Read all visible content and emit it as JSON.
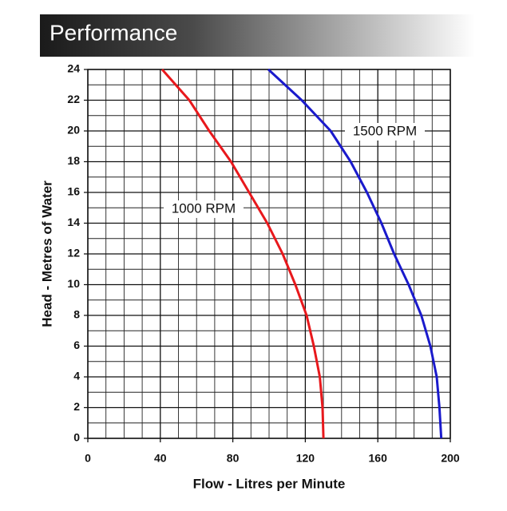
{
  "chart_data": {
    "type": "line",
    "title": "Performance",
    "x_label": "Flow - Litres per Minute",
    "y_label": "Head - Metres of Water",
    "xlim": [
      0,
      200
    ],
    "ylim": [
      0,
      24
    ],
    "xticks": [
      0,
      40,
      80,
      120,
      160,
      200
    ],
    "yticks": [
      0,
      2,
      4,
      6,
      8,
      10,
      12,
      14,
      16,
      18,
      20,
      22,
      24
    ],
    "xgrid": [
      10,
      20,
      30,
      50,
      60,
      70,
      90,
      100,
      110,
      130,
      140,
      150,
      170,
      180,
      190
    ],
    "ygrid": [
      1,
      3,
      5,
      7,
      9,
      11,
      13,
      15,
      17,
      19,
      21,
      23
    ],
    "grid": true,
    "series": [
      {
        "name": "1000 RPM",
        "color": "#e8181c",
        "x": [
          41,
          56,
          67,
          79,
          89,
          99,
          107.5,
          114.5,
          120.7,
          124.7,
          128,
          129.5,
          130
        ],
        "values": [
          24,
          22,
          20,
          18,
          16,
          14,
          12,
          10,
          8,
          6,
          4,
          2,
          0
        ]
      },
      {
        "name": "1500 RPM",
        "color": "#1a1acc",
        "x": [
          99.6,
          118,
          134,
          145,
          154,
          162,
          169,
          177,
          184,
          189,
          192.5,
          194,
          195
        ],
        "values": [
          24,
          22,
          20,
          18,
          16,
          14,
          12,
          10,
          8,
          6,
          4,
          2,
          0
        ]
      }
    ]
  }
}
